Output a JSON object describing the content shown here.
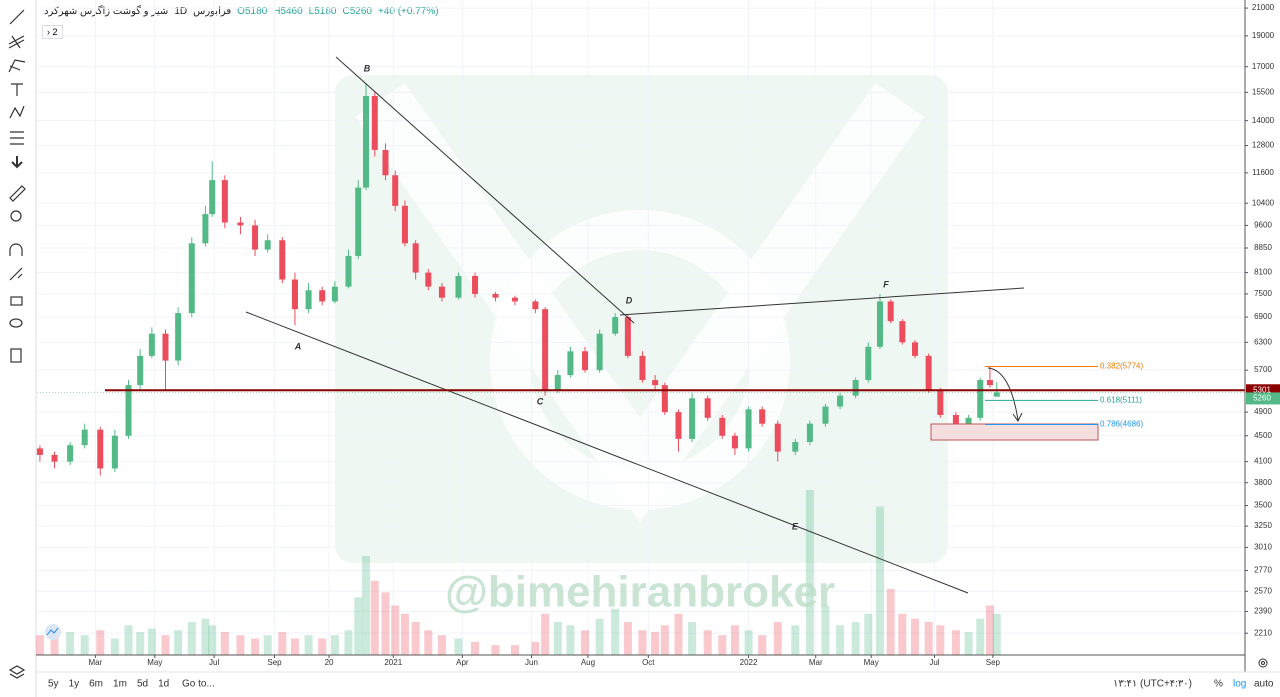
{
  "header": {
    "symbol": "شیر و گوشت زاگرس شهرکرد",
    "interval": "1D",
    "exchange": "فرابورس",
    "open": "O5180",
    "high": "H5460",
    "low": "L5180",
    "close": "C5260",
    "change": "+40 (+0.77%)",
    "indicators_count": "2"
  },
  "toolbar": {
    "ranges": [
      "5y",
      "1y",
      "6m",
      "1m",
      "5d",
      "1d"
    ],
    "goto": "Go to...",
    "clock": "۱۳:۴۱ (UTC+۴:۳۰)",
    "percent": "%",
    "log": "log",
    "auto": "auto"
  },
  "chart_data": {
    "type": "candlestick",
    "log_scale": true,
    "grid": true,
    "up_color": "#53b987",
    "down_color": "#eb4d5c",
    "x": [
      3,
      18,
      34,
      49,
      65,
      80,
      94,
      106,
      118,
      132,
      145,
      159,
      173,
      180,
      193,
      209,
      224,
      237,
      252,
      265,
      279,
      293,
      306,
      320,
      330,
      338,
      347,
      358,
      368,
      378,
      389,
      402,
      416,
      433,
      450,
      471,
      491,
      512,
      522,
      535,
      548,
      563,
      578,
      594,
      607,
      622,
      635,
      645,
      659,
      673,
      689,
      704,
      717,
      731,
      745,
      761,
      779,
      794,
      810,
      825,
      841,
      854,
      866,
      877,
      889,
      902,
      916,
      928,
      944,
      957,
      969,
      979,
      986
    ],
    "open": [
      4300,
      4200,
      4100,
      4350,
      4600,
      4000,
      4500,
      5400,
      6000,
      6500,
      5900,
      7000,
      9000,
      10000,
      11300,
      9700,
      9600,
      8800,
      9100,
      7900,
      7100,
      7600,
      7300,
      7700,
      8600,
      11000,
      15300,
      12600,
      11500,
      10300,
      9000,
      8100,
      7700,
      7400,
      8000,
      7500,
      7400,
      7300,
      7100,
      5300,
      5600,
      6100,
      5700,
      6500,
      6900,
      6000,
      5500,
      5400,
      4900,
      4450,
      5150,
      4800,
      4500,
      4300,
      4950,
      4700,
      4250,
      4400,
      4700,
      5000,
      5200,
      5500,
      6200,
      7300,
      6800,
      6300,
      6000,
      5300,
      4850,
      4650,
      4800,
      5500,
      5180
    ],
    "high": [
      4350,
      4250,
      4400,
      4700,
      4650,
      4600,
      5500,
      6150,
      6650,
      6600,
      7150,
      9200,
      10300,
      12100,
      11500,
      9900,
      9800,
      9300,
      9200,
      8100,
      7800,
      7700,
      7850,
      8800,
      11300,
      16000,
      15500,
      12900,
      11700,
      10500,
      9100,
      8200,
      7800,
      8100,
      8100,
      7550,
      7450,
      7350,
      7150,
      5700,
      6200,
      6200,
      6600,
      7000,
      6950,
      6100,
      5600,
      5450,
      4950,
      5250,
      5200,
      4850,
      4550,
      5000,
      5000,
      4750,
      4450,
      4750,
      5050,
      5250,
      5550,
      6300,
      7500,
      7350,
      6850,
      6350,
      6050,
      5350,
      4900,
      4850,
      5550,
      5774,
      5460
    ],
    "low": [
      4100,
      4000,
      4050,
      4300,
      3900,
      3950,
      4450,
      5300,
      5950,
      5300,
      5800,
      6900,
      8900,
      9900,
      9500,
      9300,
      8600,
      8700,
      7800,
      6700,
      7000,
      7200,
      7250,
      7650,
      8500,
      10900,
      12300,
      11300,
      10100,
      8900,
      7900,
      7600,
      7300,
      7350,
      7400,
      7300,
      7200,
      7000,
      5200,
      5250,
      5550,
      5650,
      5650,
      6450,
      5950,
      5450,
      5300,
      4850,
      4250,
      4400,
      4750,
      4450,
      4200,
      4250,
      4650,
      4100,
      4200,
      4350,
      4650,
      4950,
      5150,
      5450,
      6150,
      6750,
      6250,
      5950,
      5250,
      4800,
      4550,
      4600,
      4750,
      5350,
      5180
    ],
    "close": [
      4200,
      4100,
      4350,
      4600,
      4000,
      4500,
      5400,
      6000,
      6500,
      5900,
      7000,
      9000,
      10000,
      11300,
      9700,
      9600,
      8800,
      9100,
      7900,
      7100,
      7600,
      7300,
      7700,
      8600,
      11000,
      15300,
      12600,
      11500,
      10300,
      9000,
      8100,
      7700,
      7400,
      8000,
      7500,
      7400,
      7300,
      7100,
      5300,
      5600,
      6100,
      5700,
      6500,
      6900,
      6000,
      5500,
      5400,
      4900,
      4450,
      5150,
      4800,
      4500,
      4300,
      4950,
      4700,
      4250,
      4400,
      4700,
      5000,
      5200,
      5500,
      6200,
      7300,
      6800,
      6300,
      6000,
      5300,
      4850,
      4650,
      4800,
      5500,
      5400,
      5260
    ],
    "volume": [
      12,
      10,
      14,
      12,
      15,
      10,
      18,
      14,
      16,
      12,
      15,
      20,
      22,
      18,
      14,
      12,
      10,
      12,
      14,
      10,
      12,
      10,
      12,
      15,
      35,
      60,
      45,
      38,
      30,
      25,
      20,
      15,
      12,
      10,
      8,
      6,
      6,
      8,
      25,
      20,
      18,
      15,
      22,
      28,
      20,
      15,
      14,
      18,
      25,
      20,
      15,
      12,
      18,
      15,
      12,
      20,
      18,
      100,
      30,
      18,
      20,
      25,
      90,
      40,
      25,
      22,
      20,
      18,
      15,
      14,
      22,
      30,
      25
    ],
    "vlim": [
      0,
      100
    ],
    "xlim": [
      0,
      1241
    ],
    "xticks": [
      {
        "value": 60,
        "label": "Mar"
      },
      {
        "value": 121,
        "label": "May"
      },
      {
        "value": 182,
        "label": "Jul"
      },
      {
        "value": 244,
        "label": "Sep"
      },
      {
        "value": 300,
        "label": "20"
      },
      {
        "value": 366,
        "label": "2021"
      },
      {
        "value": 437,
        "label": "Apr"
      },
      {
        "value": 508,
        "label": "Jun"
      },
      {
        "value": 566,
        "label": "Aug"
      },
      {
        "value": 628,
        "label": "Oct"
      },
      {
        "value": 731,
        "label": "2022"
      },
      {
        "value": 800,
        "label": "Mar"
      },
      {
        "value": 857,
        "label": "May"
      },
      {
        "value": 922,
        "label": "Jul"
      },
      {
        "value": 982,
        "label": "Sep"
      }
    ],
    "ylim": [
      2043,
      21620
    ],
    "yticks": [
      21000,
      19000,
      17000,
      15500,
      14000,
      12800,
      11600,
      10400,
      9600,
      8850,
      8100,
      7500,
      6900,
      6300,
      5700,
      4900,
      4500,
      4100,
      3800,
      3500,
      3250,
      3010,
      2770,
      2570,
      2390,
      2210
    ],
    "horizontal_line": {
      "value": 5301,
      "color": "#8b0000"
    },
    "fib_levels": [
      {
        "label": "0.382(5774)",
        "price": 5774,
        "color": "#f57c00"
      },
      {
        "label": "0.618(5111)",
        "price": 5111,
        "color": "#26a69a"
      },
      {
        "label": "0.786(4686)",
        "price": 4686,
        "color": "#2196f3"
      }
    ],
    "wave_labels": [
      "A",
      "B",
      "C",
      "D",
      "E",
      "F"
    ],
    "watermark": "@bimehiranbroker"
  }
}
